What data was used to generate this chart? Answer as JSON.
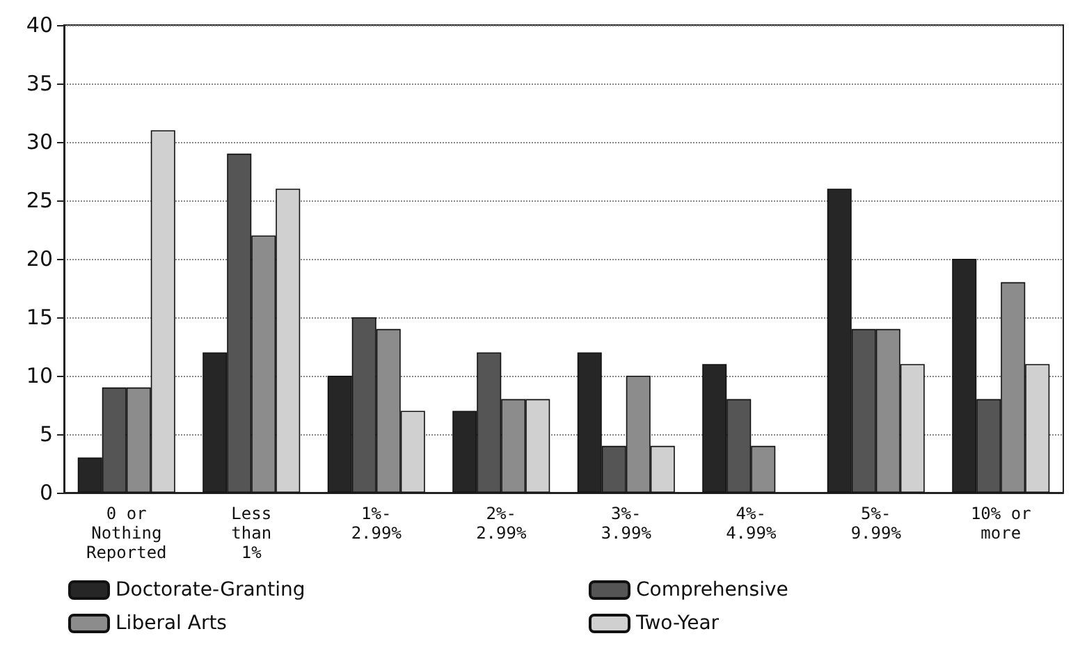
{
  "chart_data": {
    "type": "bar",
    "categories": [
      "0 or\nNothing\nReported",
      "Less\nthan\n1%",
      "1%-\n2.99%",
      "2%-\n2.99%",
      "3%-\n3.99%",
      "4%-\n4.99%",
      "5%-\n9.99%",
      "10% or\nmore"
    ],
    "series": [
      {
        "name": "Doctorate-Granting",
        "color": "#262626",
        "values": [
          3,
          12,
          10,
          7,
          12,
          11,
          26,
          20
        ]
      },
      {
        "name": "Comprehensive",
        "color": "#555555",
        "values": [
          9,
          29,
          15,
          12,
          4,
          8,
          14,
          8
        ]
      },
      {
        "name": "Liberal Arts",
        "color": "#8c8c8c",
        "values": [
          9,
          22,
          14,
          8,
          10,
          4,
          14,
          18
        ]
      },
      {
        "name": "Two-Year",
        "color": "#d0d0d0",
        "values": [
          31,
          26,
          7,
          8,
          4,
          null,
          11,
          11
        ]
      }
    ],
    "ylim": [
      0,
      40
    ],
    "yticks": [
      0,
      5,
      10,
      15,
      20,
      25,
      30,
      35,
      40
    ],
    "grid": "y",
    "legend": "bottom"
  }
}
